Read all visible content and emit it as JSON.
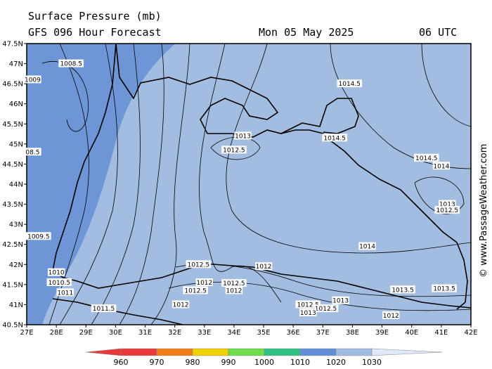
{
  "header": {
    "title": "Surface Pressure (mb)",
    "subtitle": "GFS 096 Hour Forecast",
    "date": "Mon 05 May 2025",
    "hour": "06 UTC"
  },
  "watermark": "© www.PassageWeather.com",
  "axes": {
    "lon_labels": [
      "27E",
      "28E",
      "29E",
      "30E",
      "31E",
      "32E",
      "33E",
      "34E",
      "35E",
      "36E",
      "37E",
      "38E",
      "39E",
      "40E",
      "41E",
      "42E"
    ],
    "lat_labels": [
      "40.5N",
      "41N",
      "41.5N",
      "42N",
      "42.5N",
      "43N",
      "43.5N",
      "44N",
      "44.5N",
      "45N",
      "45.5N",
      "46N",
      "46.5N",
      "47N",
      "47.5N"
    ],
    "lon_range": [
      27,
      42
    ],
    "lat_range": [
      40.5,
      47.5
    ]
  },
  "contour_labels": [
    {
      "text": "1009",
      "lon": 27.2,
      "lat": 46.6
    },
    {
      "text": "1008.5",
      "lon": 28.5,
      "lat": 47.0
    },
    {
      "text": "08.5",
      "lon": 27.2,
      "lat": 44.8
    },
    {
      "text": "1009.5",
      "lon": 27.4,
      "lat": 42.7
    },
    {
      "text": "1010",
      "lon": 28.0,
      "lat": 41.8
    },
    {
      "text": "1010.5",
      "lon": 28.1,
      "lat": 41.55
    },
    {
      "text": "1011",
      "lon": 28.3,
      "lat": 41.3
    },
    {
      "text": "1011.5",
      "lon": 29.6,
      "lat": 40.9
    },
    {
      "text": "1012.5",
      "lon": 32.8,
      "lat": 42.0
    },
    {
      "text": "1012",
      "lon": 35.0,
      "lat": 41.95
    },
    {
      "text": "1012",
      "lon": 33.0,
      "lat": 41.55
    },
    {
      "text": "1012.5",
      "lon": 34.0,
      "lat": 41.53
    },
    {
      "text": "1012.5",
      "lon": 32.7,
      "lat": 41.35
    },
    {
      "text": "1012",
      "lon": 34.0,
      "lat": 41.35
    },
    {
      "text": "1012",
      "lon": 32.2,
      "lat": 41.0
    },
    {
      "text": "1013",
      "lon": 34.3,
      "lat": 45.2
    },
    {
      "text": "1012.5",
      "lon": 34.0,
      "lat": 44.85
    },
    {
      "text": "1014.5",
      "lon": 37.9,
      "lat": 46.5
    },
    {
      "text": "1014.5",
      "lon": 37.4,
      "lat": 45.15
    },
    {
      "text": "1014.5",
      "lon": 40.5,
      "lat": 44.65
    },
    {
      "text": "1014",
      "lon": 41.0,
      "lat": 44.45
    },
    {
      "text": "1014",
      "lon": 38.5,
      "lat": 42.45
    },
    {
      "text": "1013.5",
      "lon": 39.7,
      "lat": 41.37
    },
    {
      "text": "1013",
      "lon": 37.6,
      "lat": 41.1
    },
    {
      "text": "1012.5",
      "lon": 36.5,
      "lat": 41.0
    },
    {
      "text": "1012.5",
      "lon": 37.1,
      "lat": 40.9
    },
    {
      "text": "1013",
      "lon": 36.5,
      "lat": 40.8
    },
    {
      "text": "1012",
      "lon": 39.3,
      "lat": 40.73
    },
    {
      "text": "1013",
      "lon": 41.2,
      "lat": 43.5
    },
    {
      "text": "1012.5",
      "lon": 41.2,
      "lat": 43.35
    },
    {
      "text": "1013.5",
      "lon": 41.1,
      "lat": 41.4
    }
  ],
  "legend": {
    "values": [
      "960",
      "970",
      "980",
      "990",
      "1000",
      "1010",
      "1020",
      "1030"
    ],
    "colors": [
      "#e83a3a",
      "#f07e18",
      "#f0d000",
      "#6fdc4a",
      "#2fbf84",
      "#5f8fd6",
      "#9fbce3",
      "#dfe8f7"
    ]
  },
  "colors": {
    "sea_pressure_low": "#6e96d6",
    "sea_pressure_mid": "#a3bde0",
    "coast": "#000000"
  }
}
